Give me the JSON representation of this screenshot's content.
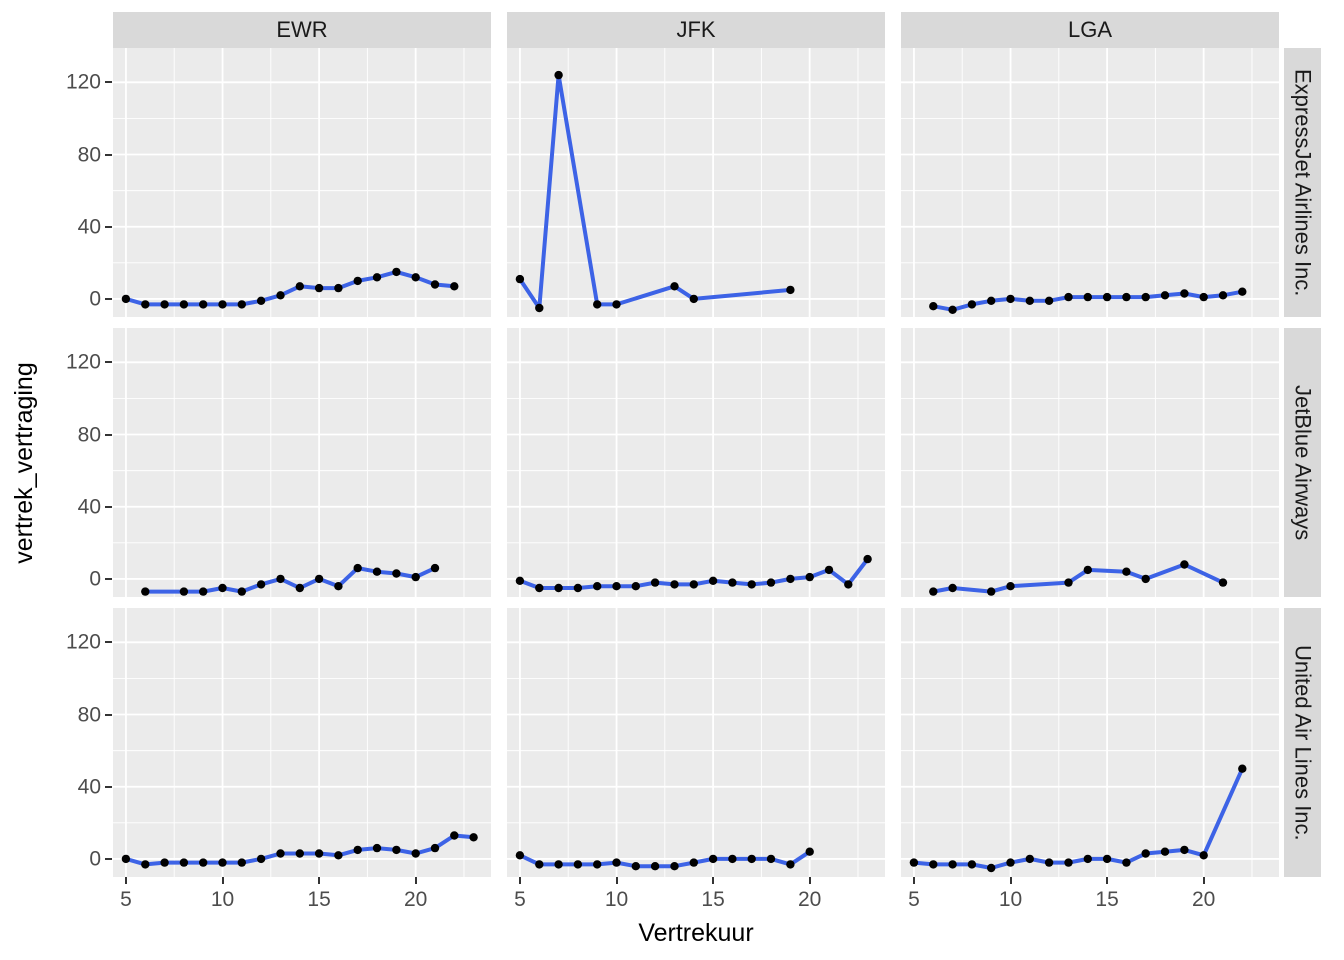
{
  "chart_data": {
    "type": "line",
    "title": "",
    "xlabel": "Vertrekuur",
    "ylabel": "vertrek_vertraging",
    "facet_cols": [
      "EWR",
      "JFK",
      "LGA"
    ],
    "facet_rows": [
      "ExpressJet Airlines Inc.",
      "JetBlue Airways",
      "United Air Lines Inc."
    ],
    "x_ticks": [
      5,
      10,
      15,
      20
    ],
    "y_ticks": [
      0,
      40,
      80,
      120
    ],
    "xlim": [
      4.33,
      23.9
    ],
    "ylim": [
      -10,
      139
    ],
    "grid": true,
    "legend": "none",
    "line_color": "#3d63e6",
    "point_color": "#000000",
    "panels": [
      {
        "row": "ExpressJet Airlines Inc.",
        "col": "EWR",
        "x": [
          5,
          6,
          7,
          8,
          9,
          10,
          11,
          12,
          13,
          14,
          15,
          16,
          17,
          18,
          19,
          20,
          21,
          22
        ],
        "y": [
          0,
          -3,
          -3,
          -3,
          -3,
          -3,
          -3,
          -1,
          2,
          7,
          6,
          6,
          10,
          12,
          15,
          12,
          8,
          7
        ]
      },
      {
        "row": "ExpressJet Airlines Inc.",
        "col": "JFK",
        "x": [
          5,
          6,
          7,
          9,
          10,
          13,
          14,
          19
        ],
        "y": [
          11,
          -5,
          124,
          -3,
          -3,
          7,
          0,
          5
        ]
      },
      {
        "row": "ExpressJet Airlines Inc.",
        "col": "LGA",
        "x": [
          6,
          7,
          8,
          9,
          10,
          11,
          12,
          13,
          14,
          15,
          16,
          17,
          18,
          19,
          20,
          21,
          22
        ],
        "y": [
          -4,
          -6,
          -3,
          -1,
          0,
          -1,
          -1,
          1,
          1,
          1,
          1,
          1,
          2,
          3,
          1,
          2,
          4
        ]
      },
      {
        "row": "JetBlue Airways",
        "col": "EWR",
        "x": [
          6,
          8,
          9,
          10,
          11,
          12,
          13,
          14,
          15,
          16,
          17,
          18,
          19,
          20,
          21
        ],
        "y": [
          -7,
          -7,
          -7,
          -5,
          -7,
          -3,
          0,
          -5,
          0,
          -4,
          6,
          4,
          3,
          1,
          6
        ]
      },
      {
        "row": "JetBlue Airways",
        "col": "JFK",
        "x": [
          5,
          6,
          7,
          8,
          9,
          10,
          11,
          12,
          13,
          14,
          15,
          16,
          17,
          18,
          19,
          20,
          21,
          22,
          23
        ],
        "y": [
          -1,
          -5,
          -5,
          -5,
          -4,
          -4,
          -4,
          -2,
          -3,
          -3,
          -1,
          -2,
          -3,
          -2,
          0,
          1,
          5,
          -3,
          11
        ]
      },
      {
        "row": "JetBlue Airways",
        "col": "LGA",
        "x": [
          6,
          7,
          9,
          10,
          13,
          14,
          16,
          17,
          19,
          21
        ],
        "y": [
          -7,
          -5,
          -7,
          -4,
          -2,
          5,
          4,
          0,
          8,
          -2
        ]
      },
      {
        "row": "United Air Lines Inc.",
        "col": "EWR",
        "x": [
          5,
          6,
          7,
          8,
          9,
          10,
          11,
          12,
          13,
          14,
          15,
          16,
          17,
          18,
          19,
          20,
          21,
          22,
          23
        ],
        "y": [
          0,
          -3,
          -2,
          -2,
          -2,
          -2,
          -2,
          0,
          3,
          3,
          3,
          2,
          5,
          6,
          5,
          3,
          6,
          13,
          12
        ]
      },
      {
        "row": "United Air Lines Inc.",
        "col": "JFK",
        "x": [
          5,
          6,
          7,
          8,
          9,
          10,
          11,
          12,
          13,
          14,
          15,
          16,
          17,
          18,
          19,
          20
        ],
        "y": [
          2,
          -3,
          -3,
          -3,
          -3,
          -2,
          -4,
          -4,
          -4,
          -2,
          0,
          0,
          0,
          0,
          -3,
          4
        ]
      },
      {
        "row": "United Air Lines Inc.",
        "col": "LGA",
        "x": [
          5,
          6,
          7,
          8,
          9,
          10,
          11,
          12,
          13,
          14,
          15,
          16,
          17,
          18,
          19,
          20,
          22
        ],
        "y": [
          -2,
          -3,
          -3,
          -3,
          -5,
          -2,
          0,
          -2,
          -2,
          0,
          0,
          -2,
          3,
          4,
          5,
          2,
          50
        ]
      }
    ]
  }
}
